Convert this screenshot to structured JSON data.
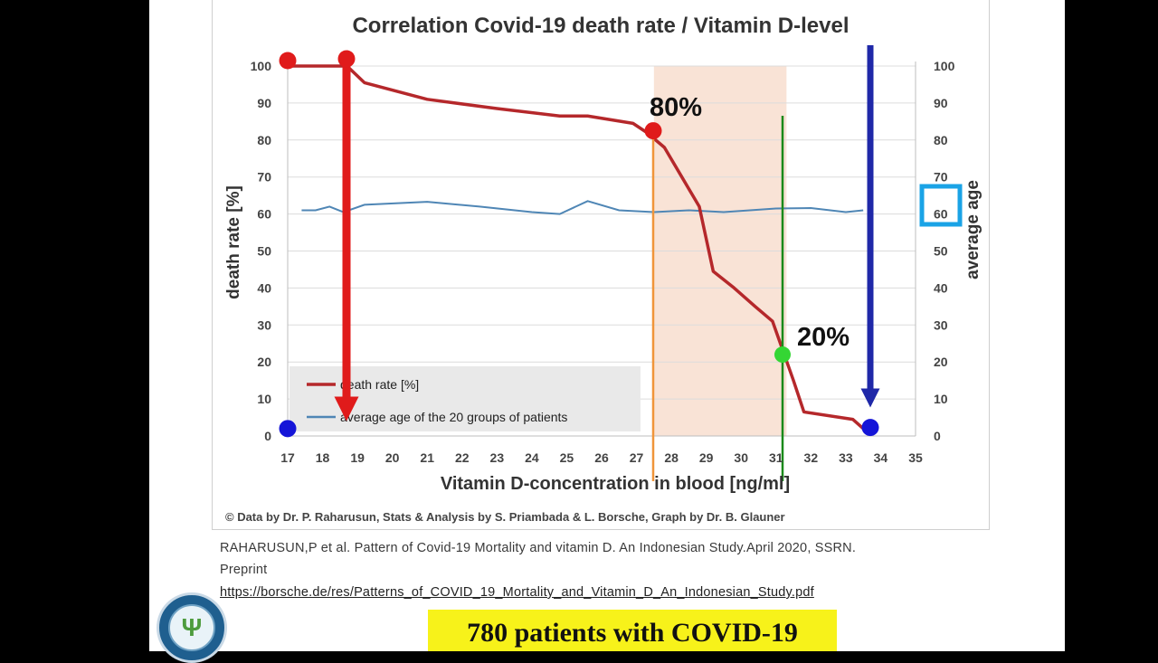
{
  "chart_data": {
    "type": "line",
    "title": "Correlation Covid-19 death rate / Vitamin D-level",
    "xlabel": "Vitamin D-concentration in blood [ng/ml]",
    "ylabel": "death rate [%]",
    "y2label": "average age",
    "xlim": [
      17,
      35
    ],
    "ylim": [
      0,
      100
    ],
    "y2lim": [
      0,
      100
    ],
    "x_ticks": [
      "17",
      "18",
      "19",
      "20",
      "21",
      "22",
      "23",
      "24",
      "25",
      "26",
      "27",
      "28",
      "29",
      "30",
      "31",
      "32",
      "33",
      "34",
      "35"
    ],
    "y_ticks": [
      "0",
      "10",
      "20",
      "30",
      "40",
      "50",
      "60",
      "70",
      "80",
      "90",
      "100"
    ],
    "y2_ticks": [
      "0",
      "10",
      "20",
      "30",
      "40",
      "50",
      "60",
      "70",
      "80",
      "90",
      "100"
    ],
    "series": [
      {
        "name": "death rate [%]",
        "color": "#b5282b",
        "x": [
          17.0,
          18.7,
          19.2,
          21.0,
          23.0,
          24.8,
          25.6,
          26.9,
          27.3,
          27.8,
          28.3,
          28.8,
          29.2,
          29.8,
          30.4,
          30.9,
          31.2,
          31.5,
          31.8,
          33.2,
          33.5
        ],
        "y": [
          100,
          100,
          95.5,
          91,
          88.5,
          86.5,
          86.5,
          84.5,
          82,
          78,
          70,
          62,
          44.5,
          40,
          35,
          31,
          23,
          15,
          6.5,
          4.5,
          2
        ]
      },
      {
        "name": "average age of the 20 groups of patients",
        "color": "#4f86b5",
        "x": [
          17.4,
          17.8,
          18.2,
          18.6,
          19.2,
          21.0,
          22.5,
          24.0,
          24.8,
          25.6,
          26.5,
          27.5,
          28.5,
          29.5,
          31.0,
          32.0,
          33.0,
          33.5
        ],
        "y": [
          61,
          61,
          62,
          60.5,
          62.5,
          63.3,
          62,
          60.5,
          60,
          63.5,
          61,
          60.5,
          61,
          60.5,
          61.5,
          61.6,
          60.5,
          61
        ]
      }
    ],
    "annotations": [
      {
        "label": "80%",
        "x": 27.5,
        "y": 82.5
      },
      {
        "label": "20%",
        "x": 31.2,
        "y": 22
      }
    ],
    "highlight_band": {
      "x_from": 27.5,
      "x_to": 31.3
    },
    "copyright": "© Data by Dr. P. Raharusun, Stats & Analysis by S. Priambada & L. Borsche, Graph by Dr. B. Glauner",
    "legend_position": "bottom-left",
    "grid": true
  },
  "citation": {
    "line1": "RAHARUSUN,P et al. Pattern of Covid-19 Mortality and vitamin D. An Indonesian Study.April 2020, SSRN.",
    "line2": "Preprint",
    "url": "https://borsche.de/res/Patterns_of_COVID_19_Mortality_and_Vitamin_D_An_Indonesian_Study.pdf"
  },
  "banner": "780 patients with COVID-19",
  "logo_icon": "caduceus-leaf-logo-icon",
  "colors": {
    "death_rate": "#b5282b",
    "average_age": "#4f86b5",
    "marker_red": "#e01b1b",
    "marker_blue": "#1515d8",
    "marker_green": "#34d634",
    "arrow_red": "#e01b1b",
    "arrow_blue": "#1f28a8",
    "line_orange": "#f0953a",
    "line_green": "#1a8a1a",
    "band": "#f9e3d6",
    "age_box": "#1aa3e6",
    "banner_bg": "#f7f21a"
  }
}
